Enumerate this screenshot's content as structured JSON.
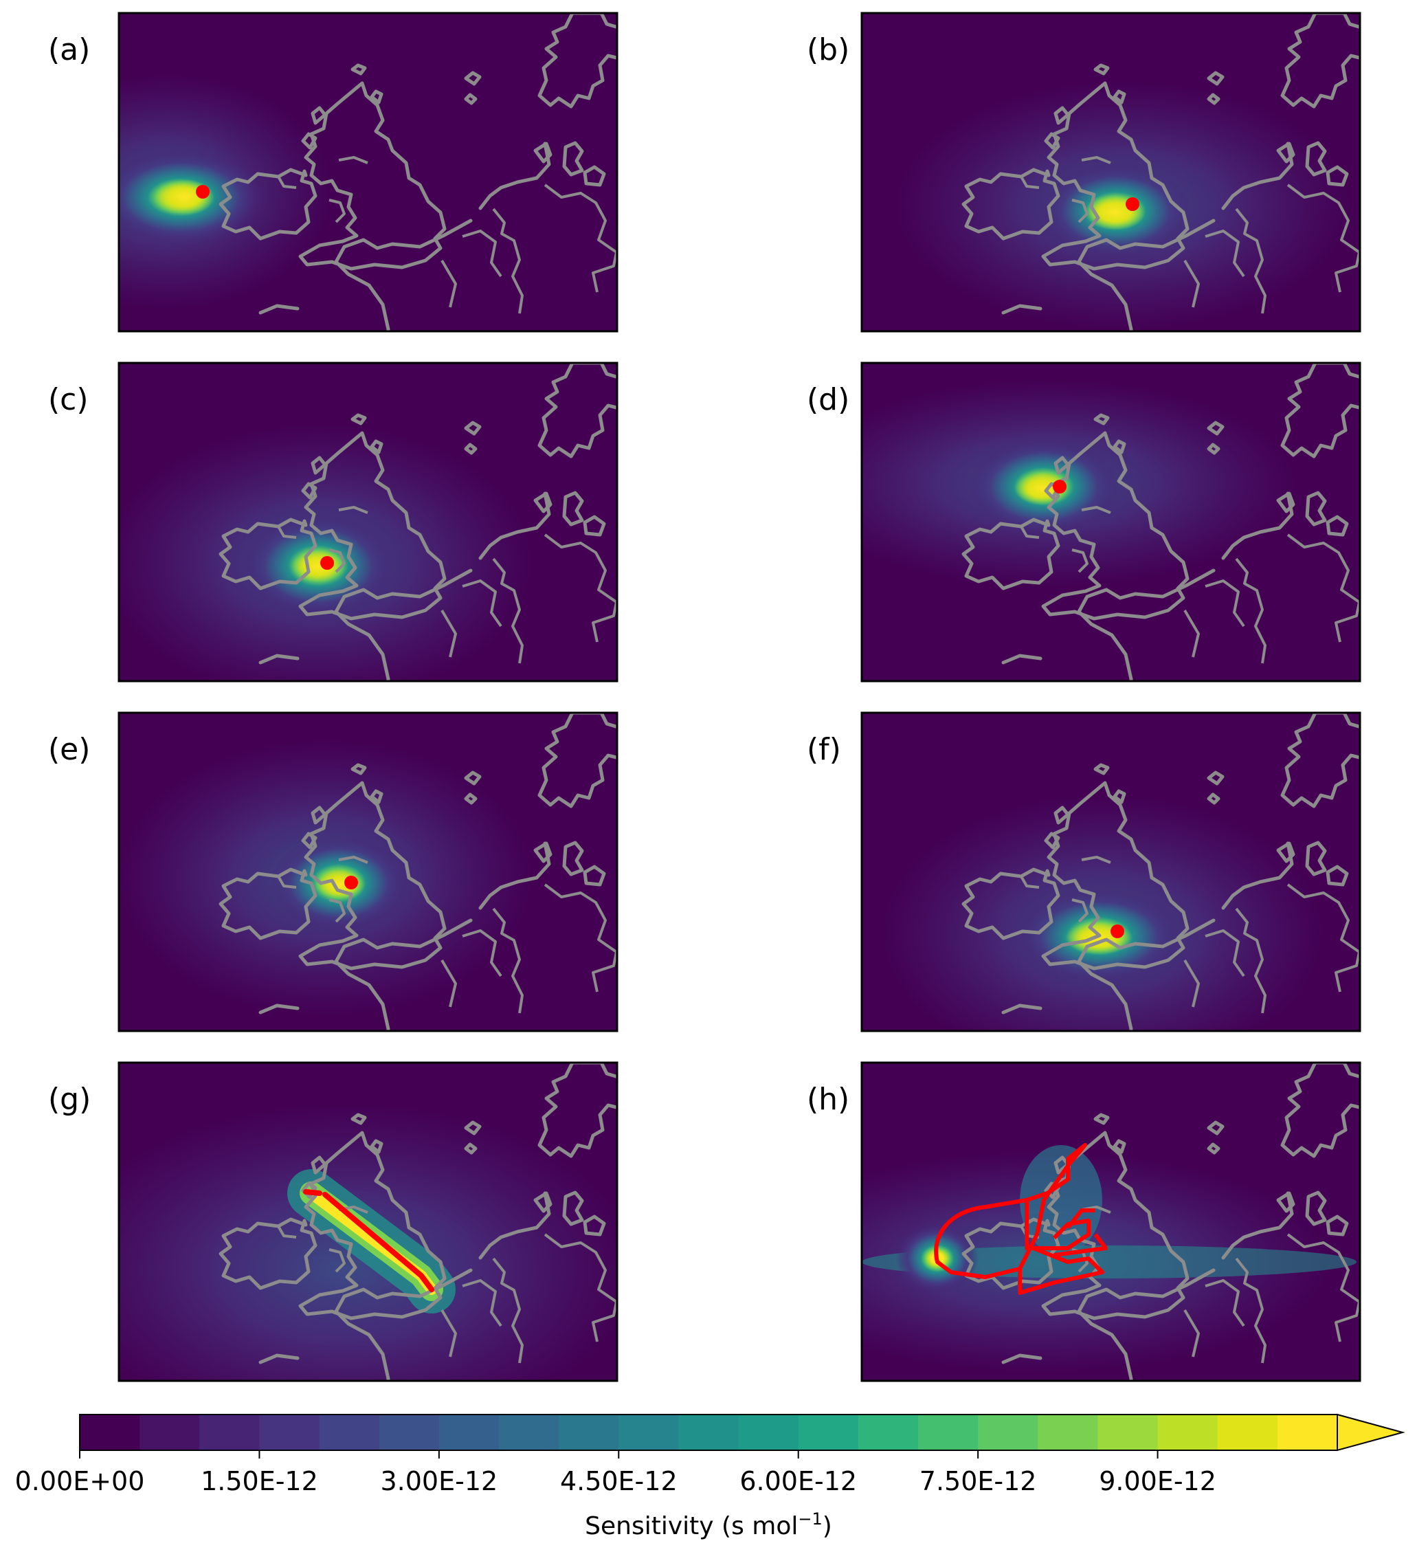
{
  "panels": [
    {
      "label": "(a)",
      "receptor_marker": "point",
      "plume": "west-ireland"
    },
    {
      "label": "(b)",
      "receptor_marker": "point",
      "plume": "south-east-england"
    },
    {
      "label": "(c)",
      "receptor_marker": "point",
      "plume": "wales-midlands"
    },
    {
      "label": "(d)",
      "receptor_marker": "point",
      "plume": "scotland"
    },
    {
      "label": "(e)",
      "receptor_marker": "point",
      "plume": "north-england"
    },
    {
      "label": "(f)",
      "receptor_marker": "point",
      "plume": "south-england"
    },
    {
      "label": "(g)",
      "receptor_marker": "track",
      "plume": "scotland-to-channel-track"
    },
    {
      "label": "(h)",
      "receptor_marker": "track",
      "plume": "multi-leg-track"
    }
  ],
  "colorbar": {
    "title": "Sensitivity (s mol",
    "title_superscript": "−1",
    "title_suffix": ")",
    "ticks": [
      "0.00E+00",
      "1.50E-12",
      "3.00E-12",
      "4.50E-12",
      "6.00E-12",
      "7.50E-12",
      "9.00E-12"
    ],
    "min": 0,
    "max": 1.05e-11,
    "levels": 21,
    "extend": "max",
    "colors": [
      "#440154",
      "#471365",
      "#482475",
      "#463480",
      "#414487",
      "#3b528b",
      "#355f8d",
      "#2f6c8e",
      "#2a788e",
      "#25848e",
      "#21918c",
      "#1e9c89",
      "#22a884",
      "#2fb47c",
      "#44bf70",
      "#5ec962",
      "#7ad151",
      "#9bd93c",
      "#bddf26",
      "#dfe318",
      "#fde725"
    ]
  },
  "map_colors": {
    "background": "#440154",
    "coastline": "#8c8c8c",
    "receptor": "#ff0000",
    "max_sensitivity": "#fde725"
  }
}
